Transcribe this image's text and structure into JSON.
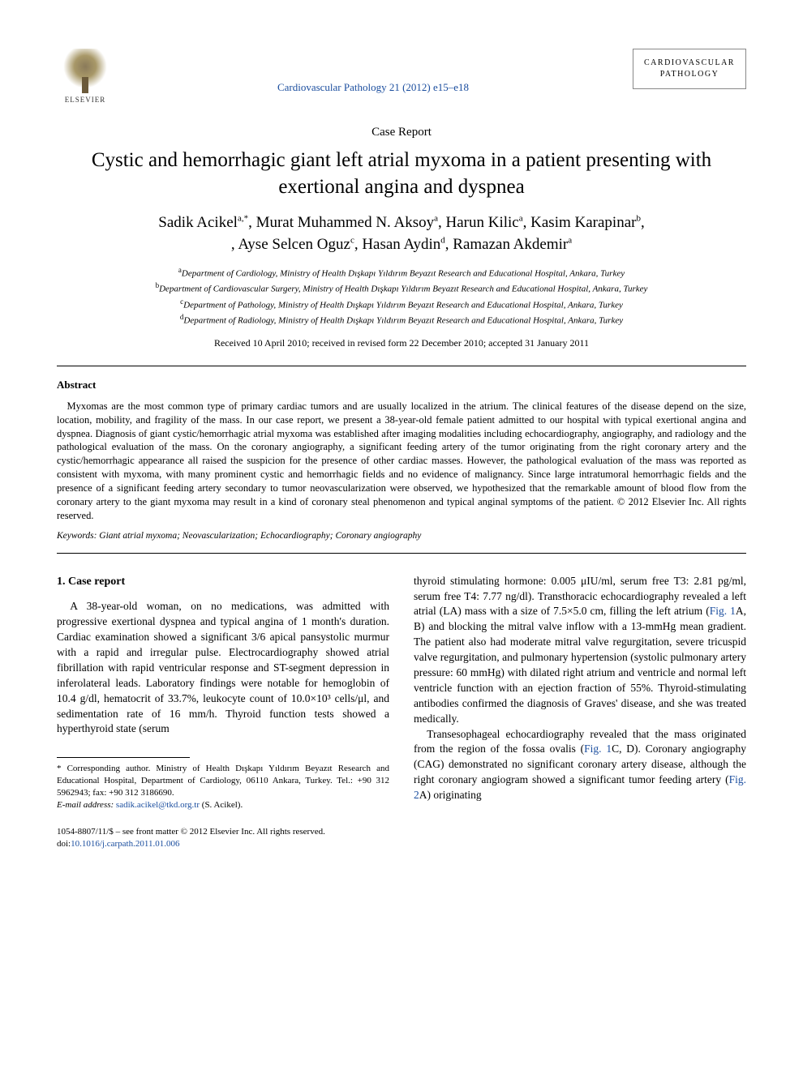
{
  "header": {
    "publisher": "ELSEVIER",
    "citation": "Cardiovascular Pathology 21 (2012) e15–e18",
    "journal_box_line1": "CARDIOVASCULAR",
    "journal_box_line2": "PATHOLOGY"
  },
  "article": {
    "type": "Case Report",
    "title": "Cystic and hemorrhagic giant left atrial myxoma in a patient presenting with exertional angina and dyspnea",
    "authors_line1": "Sadik Acikel",
    "authors_sup1": "a,*",
    "authors_name2": ", Murat Muhammed N. Aksoy",
    "authors_sup2": "a",
    "authors_name3": ", Harun Kilic",
    "authors_sup3": "a",
    "authors_name4": ", Kasim Karapinar",
    "authors_sup4": "b",
    "authors_name5": ", Ayse Selcen Oguz",
    "authors_sup5": "c",
    "authors_name6": ", Hasan Aydin",
    "authors_sup6": "d",
    "authors_name7": ", Ramazan Akdemir",
    "authors_sup7": "a",
    "affiliations": [
      {
        "sup": "a",
        "text": "Department of Cardiology, Ministry of Health Dışkapı Yıldırım Beyazıt Research and Educational Hospital, Ankara, Turkey"
      },
      {
        "sup": "b",
        "text": "Department of Cardiovascular Surgery, Ministry of Health Dışkapı Yıldırım Beyazıt Research and Educational Hospital, Ankara, Turkey"
      },
      {
        "sup": "c",
        "text": "Department of Pathology, Ministry of Health Dışkapı Yıldırım Beyazıt Research and Educational Hospital, Ankara, Turkey"
      },
      {
        "sup": "d",
        "text": "Department of Radiology, Ministry of Health Dışkapı Yıldırım Beyazıt Research and Educational Hospital, Ankara, Turkey"
      }
    ],
    "dates": "Received 10 April 2010; received in revised form 22 December 2010; accepted 31 January 2011"
  },
  "abstract": {
    "label": "Abstract",
    "text": "Myxomas are the most common type of primary cardiac tumors and are usually localized in the atrium. The clinical features of the disease depend on the size, location, mobility, and fragility of the mass. In our case report, we present a 38-year-old female patient admitted to our hospital with typical exertional angina and dyspnea. Diagnosis of giant cystic/hemorrhagic atrial myxoma was established after imaging modalities including echocardiography, angiography, and radiology and the pathological evaluation of the mass. On the coronary angiography, a significant feeding artery of the tumor originating from the right coronary artery and the cystic/hemorrhagic appearance all raised the suspicion for the presence of other cardiac masses. However, the pathological evaluation of the mass was reported as consistent with myxoma, with many prominent cystic and hemorrhagic fields and no evidence of malignancy. Since large intratumoral hemorrhagic fields and the presence of a significant feeding artery secondary to tumor neovascularization were observed, we hypothesized that the remarkable amount of blood flow from the coronary artery to the giant myxoma may result in a kind of coronary steal phenomenon and typical anginal symptoms of the patient. © 2012 Elsevier Inc. All rights reserved.",
    "keywords_label": "Keywords:",
    "keywords": " Giant atrial myxoma; Neovascularization; Echocardiography; Coronary angiography"
  },
  "body": {
    "section_heading": "1. Case report",
    "col1_para1": "A 38-year-old woman, on no medications, was admitted with progressive exertional dyspnea and typical angina of 1 month's duration. Cardiac examination showed a significant 3/6 apical pansystolic murmur with a rapid and irregular pulse. Electrocardiography showed atrial fibrillation with rapid ventricular response and ST-segment depression in inferolateral leads. Laboratory findings were notable for hemoglobin of 10.4 g/dl, hematocrit of 33.7%, leukocyte count of 10.0×10³ cells/μl, and sedimentation rate of 16 mm/h. Thyroid function tests showed a hyperthyroid state (serum",
    "col2_para1_a": "thyroid stimulating hormone: 0.005 μIU/ml, serum free T3: 2.81 pg/ml, serum free T4: 7.77 ng/dl). Transthoracic echocardiography revealed a left atrial (LA) mass with a size of 7.5×5.0 cm, filling the left atrium (",
    "fig1ab": "Fig. 1",
    "col2_para1_b": "A, B) and blocking the mitral valve inflow with a 13-mmHg mean gradient. The patient also had moderate mitral valve regurgitation, severe tricuspid valve regurgitation, and pulmonary hypertension (systolic pulmonary artery pressure: 60 mmHg) with dilated right atrium and ventricle and normal left ventricle function with an ejection fraction of 55%. Thyroid-stimulating antibodies confirmed the diagnosis of Graves' disease, and she was treated medically.",
    "col2_para2_a": "Transesophageal echocardiography revealed that the mass originated from the region of the fossa ovalis (",
    "fig1cd": "Fig. 1",
    "col2_para2_b": "C, D). Coronary angiography (CAG) demonstrated no significant coronary artery disease, although the right coronary angiogram showed a significant tumor feeding artery (",
    "fig2a": "Fig. 2",
    "col2_para2_c": "A) originating"
  },
  "footnote": {
    "corr_label": "* Corresponding author. Ministry of Health Dışkapı Yıldırım Beyazıt Research and Educational Hospital, Department of Cardiology, 06110 Ankara, Turkey. Tel.: +90 312 5962943; fax: +90 312 3186690.",
    "email_label": "E-mail address:",
    "email": " sadik.acikel@tkd.org.tr",
    "email_suffix": " (S. Acikel)."
  },
  "footer": {
    "copyright": "1054-8807/11/$ – see front matter © 2012 Elsevier Inc. All rights reserved.",
    "doi_label": "doi:",
    "doi": "10.1016/j.carpath.2011.01.006"
  },
  "colors": {
    "link": "#1a4d9e",
    "text": "#000000",
    "bg": "#ffffff"
  }
}
